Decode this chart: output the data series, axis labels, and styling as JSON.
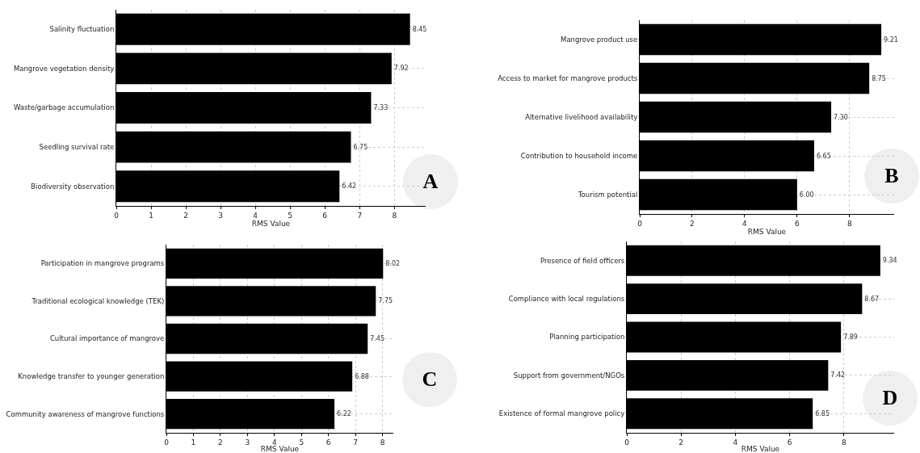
{
  "chart_data": [
    {
      "type": "bar",
      "orientation": "horizontal",
      "categories": [
        "Salinity fluctuation",
        "Mangrove vegetation density",
        "Waste/garbage accumulation",
        "Seedling survival rate",
        "Biodiversity observation"
      ],
      "values": [
        8.45,
        7.92,
        7.33,
        6.75,
        6.42
      ],
      "value_labels": [
        "8.45",
        "7.92",
        "7.33",
        "6.75",
        "6.42"
      ],
      "color": "#000000",
      "xlabel": "RMS Value",
      "xlim": [
        0,
        8.9
      ],
      "xticks": [
        0,
        1,
        2,
        3,
        4,
        5,
        6,
        7,
        8
      ],
      "grid": true,
      "annotations": [
        "A"
      ]
    },
    {
      "type": "bar",
      "orientation": "horizontal",
      "categories": [
        "Mangrove product use",
        "Access to market for mangrove products",
        "Alternative livelihood availability",
        "Contribution to household income",
        "Tourism potential"
      ],
      "values": [
        9.21,
        8.75,
        7.3,
        6.65,
        6.0
      ],
      "value_labels": [
        "9.21",
        "8.75",
        "7.30",
        "6.65",
        "6.00"
      ],
      "color": "#000000",
      "xlabel": "RMS Value",
      "xlim": [
        0,
        9.7
      ],
      "xticks": [
        0,
        2,
        4,
        6,
        8
      ],
      "grid": true,
      "annotations": [
        "B"
      ]
    },
    {
      "type": "bar",
      "orientation": "horizontal",
      "categories": [
        "Participation in mangrove programs",
        "Traditional ecological knowledge (TEK)",
        "Cultural importance of mangrove",
        "Knowledge transfer to younger generation",
        "Community awareness of mangrove functions"
      ],
      "values": [
        8.02,
        7.75,
        7.45,
        6.88,
        6.22
      ],
      "value_labels": [
        "8.02",
        "7.75",
        "7.45",
        "6.88",
        "6.22"
      ],
      "color": "#000000",
      "xlabel": "RMS Value",
      "xlim": [
        0,
        8.4
      ],
      "xticks": [
        0,
        1,
        2,
        3,
        4,
        5,
        6,
        7,
        8
      ],
      "grid": true,
      "annotations": [
        "C"
      ]
    },
    {
      "type": "bar",
      "orientation": "horizontal",
      "categories": [
        "Presence of field officers",
        "Compliance with local regulations",
        "Planning participation",
        "Support from government/NGOs",
        "Existence of formal mangrove policy"
      ],
      "values": [
        9.34,
        8.67,
        7.89,
        7.42,
        6.85
      ],
      "value_labels": [
        "9.34",
        "8.67",
        "7.89",
        "7.42",
        "6.85"
      ],
      "color": "#000000",
      "xlabel": "RMS Value",
      "xlim": [
        0,
        9.85
      ],
      "xticks": [
        0,
        2,
        4,
        6,
        8
      ],
      "grid": true,
      "annotations": [
        "D"
      ]
    }
  ]
}
